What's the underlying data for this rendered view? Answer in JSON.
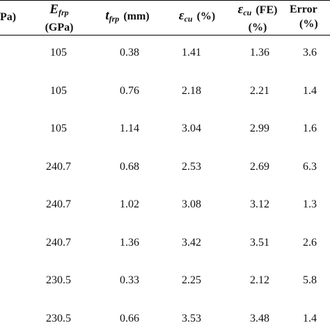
{
  "table": {
    "headers": {
      "col0": {
        "line1": "Pa)"
      },
      "col1": {
        "symbol": "E",
        "subscript": "frp",
        "line2": "(GPa)"
      },
      "col2": {
        "symbol": "t",
        "subscript": "frp",
        "unit": "(mm)"
      },
      "col3": {
        "symbol": "ε",
        "subscript": "cu",
        "unit": "(%)"
      },
      "col4": {
        "symbol": "ε",
        "subscript": "cu",
        "unit": "(FE)",
        "line2": "(%)"
      },
      "col5": {
        "line1": "Error",
        "line2": "(%)"
      }
    },
    "rows": [
      {
        "e_frp": "105",
        "t_frp": "0.38",
        "eps_cu": "1.41",
        "eps_cu_fe": "1.36",
        "error": "3.6"
      },
      {
        "e_frp": "105",
        "t_frp": "0.76",
        "eps_cu": "2.18",
        "eps_cu_fe": "2.21",
        "error": "1.4"
      },
      {
        "e_frp": "105",
        "t_frp": "1.14",
        "eps_cu": "3.04",
        "eps_cu_fe": "2.99",
        "error": "1.6"
      },
      {
        "e_frp": "240.7",
        "t_frp": "0.68",
        "eps_cu": "2.53",
        "eps_cu_fe": "2.69",
        "error": "6.3"
      },
      {
        "e_frp": "240.7",
        "t_frp": "1.02",
        "eps_cu": "3.08",
        "eps_cu_fe": "3.12",
        "error": "1.3"
      },
      {
        "e_frp": "240.7",
        "t_frp": "1.36",
        "eps_cu": "3.42",
        "eps_cu_fe": "3.51",
        "error": "2.6"
      },
      {
        "e_frp": "230.5",
        "t_frp": "0.33",
        "eps_cu": "2.25",
        "eps_cu_fe": "2.12",
        "error": "5.8"
      },
      {
        "e_frp": "230.5",
        "t_frp": "0.66",
        "eps_cu": "3.53",
        "eps_cu_fe": "3.48",
        "error": "1.4"
      }
    ]
  }
}
